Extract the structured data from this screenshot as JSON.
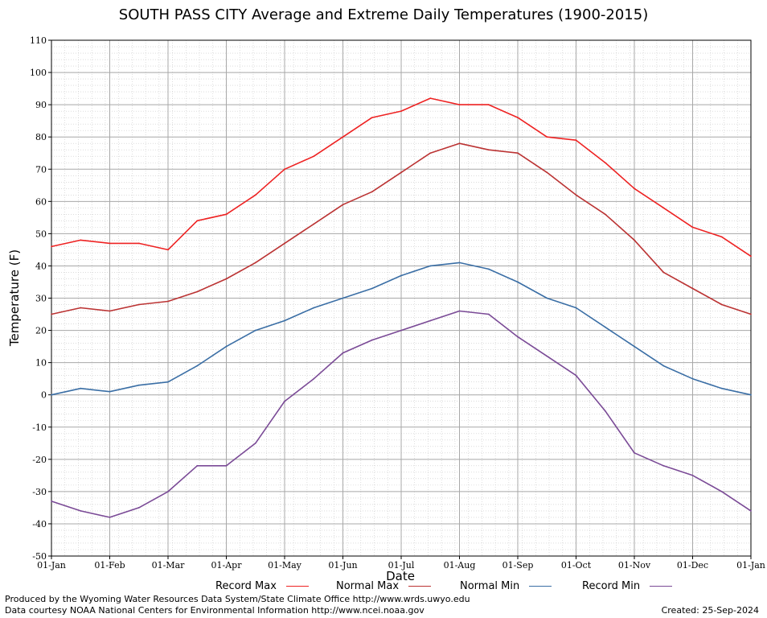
{
  "title": "SOUTH PASS CITY Average and Extreme Daily Temperatures (1900-2015)",
  "footer": {
    "line1": "Produced by the Wyoming Water Resources Data System/State Climate Office http://www.wrds.uwyo.edu",
    "line2": "Data courtesy NOAA National Centers for Environmental Information http://www.ncei.noaa.gov",
    "created": "Created: 25-Sep-2024"
  },
  "chart_data": {
    "type": "line",
    "title": "SOUTH PASS CITY Average and Extreme Daily Temperatures (1900-2015)",
    "xlabel": "Date",
    "ylabel": "Temperature (F)",
    "ylim": [
      -50,
      110
    ],
    "yticks": [
      -50,
      -40,
      -30,
      -20,
      -10,
      0,
      10,
      20,
      30,
      40,
      50,
      60,
      70,
      80,
      90,
      100,
      110
    ],
    "xlim": [
      "01-Jan",
      "01-Jan"
    ],
    "xticks": [
      "01-Jan",
      "01-Feb",
      "01-Mar",
      "01-Apr",
      "01-May",
      "01-Jun",
      "01-Jul",
      "01-Aug",
      "01-Sep",
      "01-Oct",
      "01-Nov",
      "01-Dec",
      "01-Jan"
    ],
    "grid": true,
    "legend_position": "bottom",
    "x_points": [
      "01-Jan",
      "15-Jan",
      "01-Feb",
      "15-Feb",
      "01-Mar",
      "15-Mar",
      "01-Apr",
      "15-Apr",
      "01-May",
      "15-May",
      "01-Jun",
      "15-Jun",
      "01-Jul",
      "15-Jul",
      "01-Aug",
      "15-Aug",
      "01-Sep",
      "15-Sep",
      "01-Oct",
      "15-Oct",
      "01-Nov",
      "15-Nov",
      "01-Dec",
      "15-Dec",
      "01-Jan"
    ],
    "series": [
      {
        "name": "Record Max",
        "color": "#ee2222",
        "values": [
          46,
          48,
          47,
          47,
          45,
          54,
          56,
          62,
          70,
          74,
          80,
          86,
          88,
          92,
          90,
          90,
          86,
          80,
          79,
          72,
          64,
          58,
          52,
          49,
          43
        ]
      },
      {
        "name": "Normal Max",
        "color": "#bb3333",
        "values": [
          25,
          27,
          26,
          28,
          29,
          32,
          36,
          41,
          47,
          53,
          59,
          63,
          69,
          75,
          78,
          76,
          75,
          69,
          62,
          56,
          48,
          38,
          33,
          28,
          25
        ]
      },
      {
        "name": "Normal Min",
        "color": "#3a6ea5",
        "values": [
          0,
          2,
          1,
          3,
          4,
          9,
          15,
          20,
          23,
          27,
          30,
          33,
          37,
          40,
          41,
          39,
          35,
          30,
          27,
          21,
          15,
          9,
          5,
          2,
          0
        ]
      },
      {
        "name": "Record Min",
        "color": "#7a4a96",
        "values": [
          -33,
          -36,
          -38,
          -35,
          -30,
          -22,
          -22,
          -15,
          -2,
          5,
          13,
          17,
          20,
          23,
          26,
          25,
          18,
          12,
          6,
          -5,
          -18,
          -22,
          -25,
          -30,
          -36
        ]
      }
    ]
  }
}
